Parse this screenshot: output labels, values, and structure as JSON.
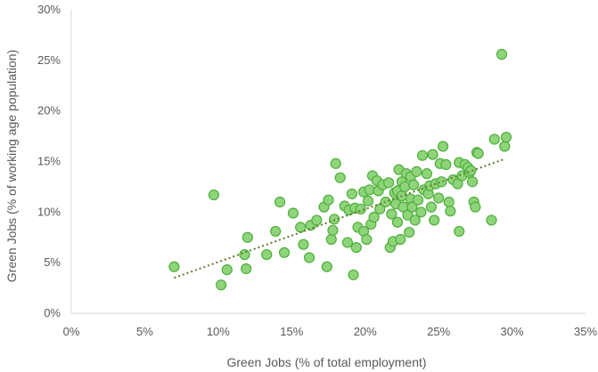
{
  "chart_data": {
    "type": "scatter",
    "title": "",
    "xlabel": "Green Jobs (% of total employment)",
    "ylabel": "Green Jobs (% of working age population)",
    "xlim": [
      0,
      35
    ],
    "ylim": [
      0,
      30
    ],
    "x_ticks": [
      0,
      5,
      10,
      15,
      20,
      25,
      30,
      35
    ],
    "y_ticks": [
      0,
      5,
      10,
      15,
      20,
      25,
      30
    ],
    "x_tick_labels": [
      "0%",
      "5%",
      "10%",
      "15%",
      "20%",
      "25%",
      "30%",
      "35%"
    ],
    "y_tick_labels": [
      "0%",
      "5%",
      "10%",
      "15%",
      "20%",
      "25%",
      "30%"
    ],
    "grid": false,
    "legend": "none",
    "trendline": {
      "type": "linear",
      "style": "dotted",
      "color": "#5a7d2a",
      "x": [
        7.0,
        29.4
      ],
      "y": [
        3.5,
        15.2
      ]
    },
    "colors": {
      "marker_fill": "#8fd47b",
      "marker_stroke": "#4caf3a",
      "axis": "#d9d9d9",
      "text": "#595959"
    },
    "series": [
      {
        "points": [
          [
            7.0,
            4.6
          ],
          [
            9.7,
            11.7
          ],
          [
            10.2,
            2.8
          ],
          [
            10.6,
            4.3
          ],
          [
            11.8,
            5.8
          ],
          [
            11.9,
            4.4
          ],
          [
            12.0,
            7.5
          ],
          [
            13.3,
            5.8
          ],
          [
            13.9,
            8.1
          ],
          [
            14.2,
            11.0
          ],
          [
            14.5,
            6.0
          ],
          [
            15.1,
            9.9
          ],
          [
            15.6,
            8.5
          ],
          [
            15.8,
            6.8
          ],
          [
            16.2,
            5.5
          ],
          [
            16.3,
            8.7
          ],
          [
            16.7,
            9.2
          ],
          [
            17.2,
            10.5
          ],
          [
            17.4,
            4.6
          ],
          [
            17.5,
            11.2
          ],
          [
            17.7,
            7.3
          ],
          [
            17.8,
            8.2
          ],
          [
            17.9,
            9.3
          ],
          [
            18.0,
            14.8
          ],
          [
            18.3,
            13.4
          ],
          [
            18.6,
            10.6
          ],
          [
            18.8,
            7.0
          ],
          [
            18.9,
            10.2
          ],
          [
            19.1,
            11.8
          ],
          [
            19.2,
            3.8
          ],
          [
            19.3,
            10.4
          ],
          [
            19.4,
            6.5
          ],
          [
            19.5,
            8.5
          ],
          [
            19.7,
            10.3
          ],
          [
            19.9,
            12.0
          ],
          [
            19.9,
            8.1
          ],
          [
            20.1,
            7.3
          ],
          [
            20.2,
            11.1
          ],
          [
            20.3,
            12.2
          ],
          [
            20.4,
            8.8
          ],
          [
            20.5,
            13.6
          ],
          [
            20.6,
            9.5
          ],
          [
            20.8,
            13.1
          ],
          [
            20.9,
            12.1
          ],
          [
            21.0,
            10.3
          ],
          [
            21.2,
            12.7
          ],
          [
            21.4,
            11.0
          ],
          [
            21.6,
            12.9
          ],
          [
            21.7,
            6.5
          ],
          [
            21.8,
            9.8
          ],
          [
            21.9,
            7.1
          ],
          [
            22.0,
            11.9
          ],
          [
            22.1,
            10.8
          ],
          [
            22.2,
            12.1
          ],
          [
            22.2,
            9.0
          ],
          [
            22.3,
            14.2
          ],
          [
            22.4,
            7.3
          ],
          [
            22.5,
            11.6
          ],
          [
            22.5,
            13.0
          ],
          [
            22.6,
            10.5
          ],
          [
            22.7,
            12.5
          ],
          [
            22.8,
            13.8
          ],
          [
            22.9,
            9.7
          ],
          [
            23.0,
            8.0
          ],
          [
            23.1,
            11.3
          ],
          [
            23.1,
            13.5
          ],
          [
            23.2,
            10.5
          ],
          [
            23.3,
            12.7
          ],
          [
            23.4,
            9.2
          ],
          [
            23.5,
            14.0
          ],
          [
            23.6,
            11.2
          ],
          [
            23.8,
            10.0
          ],
          [
            23.9,
            15.6
          ],
          [
            24.0,
            12.2
          ],
          [
            24.2,
            13.8
          ],
          [
            24.3,
            11.8
          ],
          [
            24.4,
            12.6
          ],
          [
            24.5,
            10.5
          ],
          [
            24.6,
            15.7
          ],
          [
            24.7,
            9.2
          ],
          [
            24.8,
            12.8
          ],
          [
            25.0,
            11.4
          ],
          [
            25.1,
            14.8
          ],
          [
            25.2,
            13.0
          ],
          [
            25.3,
            16.5
          ],
          [
            25.5,
            14.7
          ],
          [
            25.7,
            11.0
          ],
          [
            25.8,
            10.1
          ],
          [
            26.0,
            13.2
          ],
          [
            26.3,
            12.8
          ],
          [
            26.4,
            14.9
          ],
          [
            26.4,
            8.1
          ],
          [
            26.6,
            13.6
          ],
          [
            26.8,
            14.7
          ],
          [
            27.0,
            14.4
          ],
          [
            27.1,
            13.9
          ],
          [
            27.2,
            14.1
          ],
          [
            27.3,
            13.0
          ],
          [
            27.4,
            11.0
          ],
          [
            27.5,
            10.5
          ],
          [
            27.6,
            15.9
          ],
          [
            27.7,
            15.8
          ],
          [
            28.6,
            9.2
          ],
          [
            28.8,
            17.2
          ],
          [
            29.3,
            25.6
          ],
          [
            29.5,
            16.5
          ],
          [
            29.6,
            17.4
          ]
        ]
      }
    ]
  }
}
